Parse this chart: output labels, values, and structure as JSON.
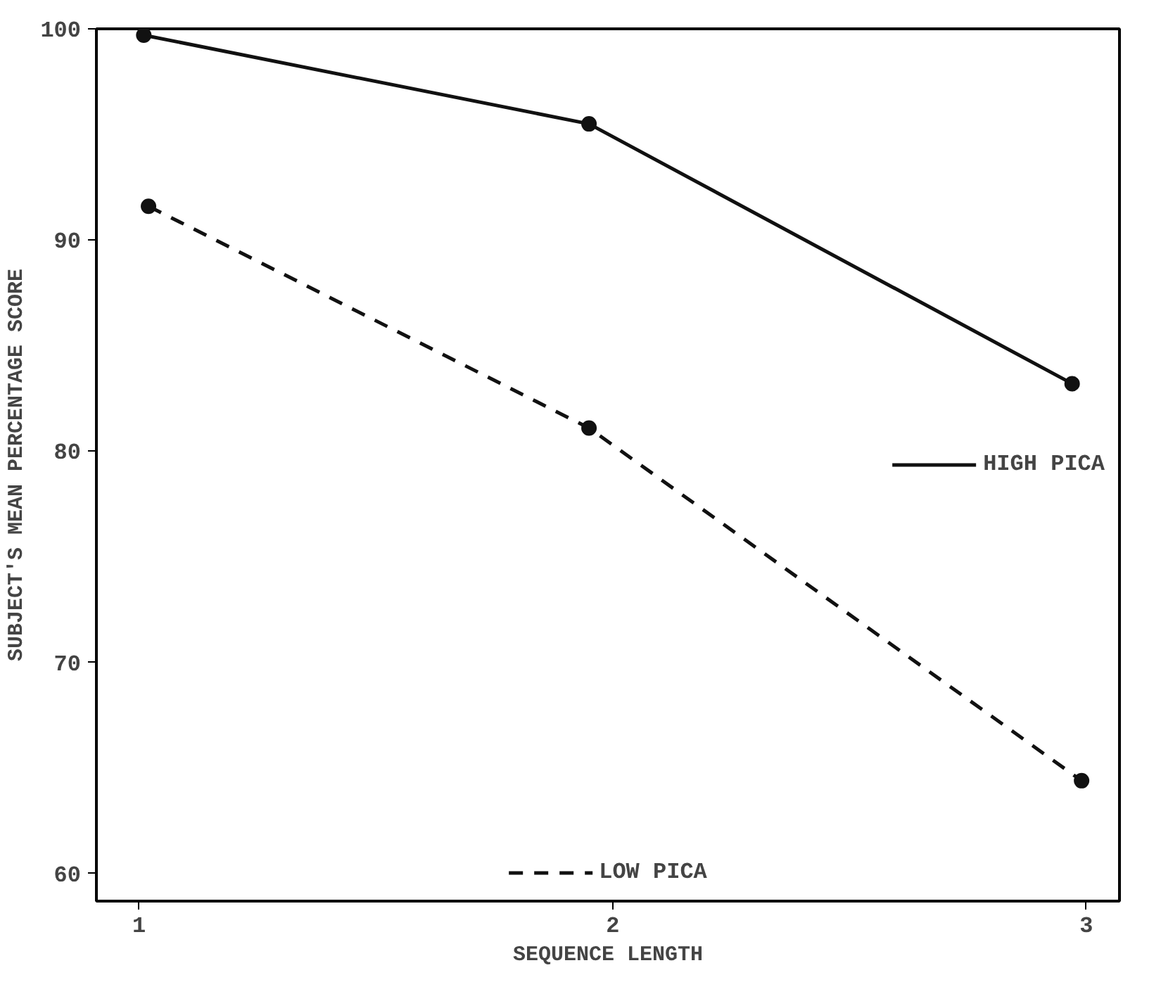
{
  "chart_data": {
    "type": "line",
    "xlabel": "SEQUENCE LENGTH",
    "ylabel": "SUBJECT'S MEAN PERCENTAGE SCORE",
    "xlim": [
      0.91,
      3.07
    ],
    "xticks": [
      1,
      2,
      3
    ],
    "ylim": [
      58.7,
      100
    ],
    "yticks": [
      60,
      70,
      80,
      90,
      100
    ],
    "grid": false,
    "legend": "right",
    "marker": "circle",
    "series": [
      {
        "name": "HIGH PICA",
        "color": "#111111",
        "line_style": "solid",
        "x": [
          1.01,
          1.95,
          2.97
        ],
        "values": [
          99.7,
          95.5,
          83.2
        ]
      },
      {
        "name": "LOW PICA",
        "color": "#111111",
        "line_style": "dashed",
        "x": [
          1.02,
          1.95,
          2.99
        ],
        "values": [
          91.6,
          81.1,
          64.4
        ]
      }
    ]
  }
}
